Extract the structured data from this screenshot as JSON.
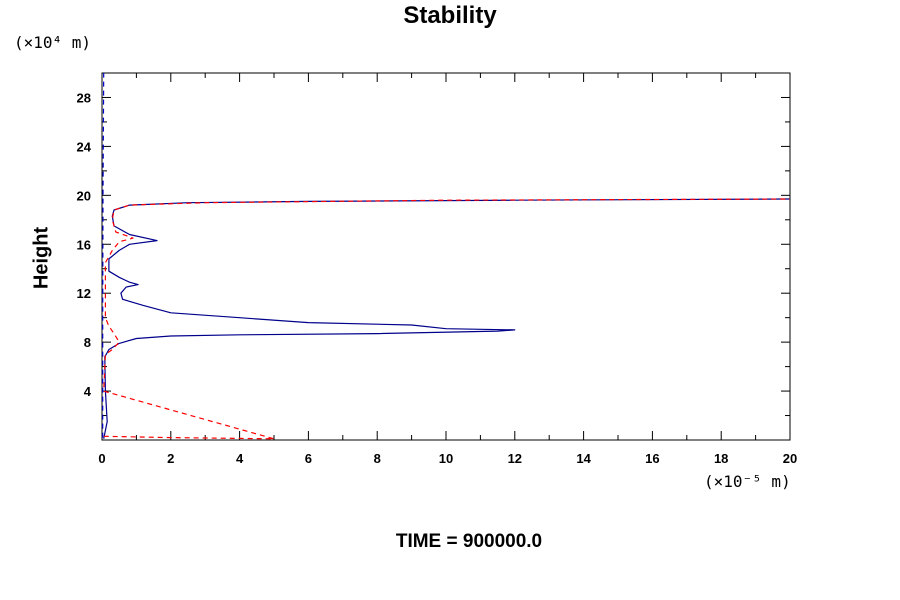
{
  "chart_data": {
    "type": "line",
    "title": "Stability",
    "ylabel": "Height",
    "xlabel": "",
    "x_unit_label": "(×10⁻⁵ m)",
    "y_unit_label": "(×10⁴ m)",
    "footer": "TIME = 900000.0",
    "xlim": [
      0,
      20
    ],
    "ylim": [
      0,
      30
    ],
    "x_ticks": [
      0,
      2,
      4,
      6,
      8,
      10,
      12,
      14,
      16,
      18,
      20
    ],
    "x_tick_labels": [
      "0",
      "2",
      "4",
      "6",
      "8",
      "10",
      "12",
      "14",
      "16",
      "18",
      "20"
    ],
    "y_ticks": [
      4,
      8,
      12,
      16,
      20,
      24,
      28
    ],
    "y_tick_labels": [
      "4",
      "8",
      "12",
      "16",
      "20",
      "24",
      "28"
    ],
    "grid": false,
    "series": [
      {
        "color": "#00008b",
        "style": "solid",
        "points": [
          [
            0.05,
            0.1
          ],
          [
            0.15,
            1.5
          ],
          [
            0.1,
            4
          ],
          [
            0.08,
            6.8
          ],
          [
            0.2,
            7.4
          ],
          [
            0.5,
            7.9
          ],
          [
            1.0,
            8.3
          ],
          [
            2.0,
            8.5
          ],
          [
            4,
            8.6
          ],
          [
            8,
            8.7
          ],
          [
            11.5,
            8.9
          ],
          [
            12.0,
            9.0
          ],
          [
            10,
            9.1
          ],
          [
            9,
            9.4
          ],
          [
            6,
            9.6
          ],
          [
            4,
            10.0
          ],
          [
            2,
            10.4
          ],
          [
            1.2,
            11.0
          ],
          [
            0.6,
            11.5
          ],
          [
            0.55,
            12.0
          ],
          [
            0.7,
            12.5
          ],
          [
            1.05,
            12.7
          ],
          [
            0.8,
            12.9
          ],
          [
            0.5,
            13.3
          ],
          [
            0.2,
            13.8
          ],
          [
            0.2,
            14.8
          ],
          [
            0.5,
            15.5
          ],
          [
            0.8,
            16.0
          ],
          [
            1.6,
            16.3
          ],
          [
            0.8,
            16.8
          ],
          [
            0.35,
            17.5
          ],
          [
            0.3,
            18.3
          ],
          [
            0.35,
            18.8
          ],
          [
            0.8,
            19.2
          ],
          [
            2.5,
            19.4
          ],
          [
            6,
            19.5
          ],
          [
            12,
            19.6
          ],
          [
            20,
            19.7
          ]
        ]
      },
      {
        "color": "#ff0000",
        "style": "dashed",
        "points": [
          [
            0.05,
            0.3
          ],
          [
            2,
            0.2
          ],
          [
            5,
            0.1
          ],
          [
            0.05,
            4
          ],
          [
            0.1,
            7.0
          ],
          [
            0.3,
            7.4
          ],
          [
            0.5,
            8.0
          ],
          [
            0.35,
            8.7
          ],
          [
            0.2,
            9.3
          ],
          [
            0.1,
            10.0
          ],
          [
            0.1,
            12.5
          ],
          [
            0.1,
            14.5
          ],
          [
            0.3,
            15.5
          ],
          [
            0.5,
            16.2
          ],
          [
            0.9,
            16.5
          ],
          [
            0.4,
            17.0
          ],
          [
            0.3,
            18.0
          ],
          [
            0.35,
            18.8
          ],
          [
            0.8,
            19.2
          ],
          [
            3,
            19.4
          ],
          [
            10,
            19.6
          ],
          [
            20,
            19.7
          ]
        ]
      },
      {
        "color": "#0000cd",
        "style": "dashed",
        "points": [
          [
            0.02,
            0.2
          ],
          [
            0.02,
            10
          ],
          [
            0.03,
            20
          ],
          [
            0.05,
            30
          ]
        ]
      }
    ]
  }
}
